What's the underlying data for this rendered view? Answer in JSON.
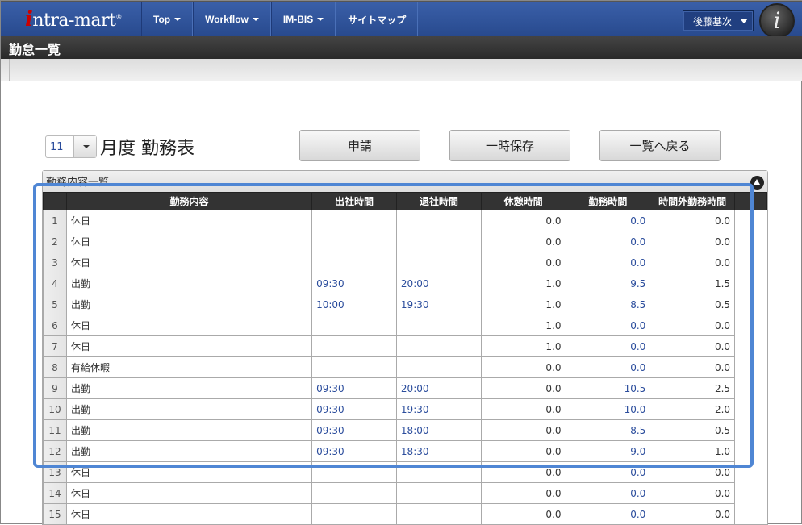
{
  "header": {
    "logo": "intra-mart",
    "nav": [
      {
        "label": "Top",
        "dropdown": true
      },
      {
        "label": "Workflow",
        "dropdown": true
      },
      {
        "label": "IM-BIS",
        "dropdown": true
      },
      {
        "label": "サイトマップ",
        "dropdown": false
      }
    ],
    "user": "後藤基次"
  },
  "page_title": "勤怠一覧",
  "month": {
    "value": "11",
    "label": "月度 勤務表"
  },
  "buttons": {
    "apply": "申請",
    "save": "一時保存",
    "back": "一覧へ戻る"
  },
  "panel": {
    "title": "勤務内容一覧"
  },
  "table": {
    "columns": [
      "",
      "勤務内容",
      "出社時間",
      "退社時間",
      "休憩時間",
      "勤務時間",
      "時間外勤務時間"
    ],
    "rows": [
      [
        "1",
        "休日",
        "",
        "",
        "0.0",
        "0.0",
        "0.0"
      ],
      [
        "2",
        "休日",
        "",
        "",
        "0.0",
        "0.0",
        "0.0"
      ],
      [
        "3",
        "休日",
        "",
        "",
        "0.0",
        "0.0",
        "0.0"
      ],
      [
        "4",
        "出勤",
        "09:30",
        "20:00",
        "1.0",
        "9.5",
        "1.5"
      ],
      [
        "5",
        "出勤",
        "10:00",
        "19:30",
        "1.0",
        "8.5",
        "0.5"
      ],
      [
        "6",
        "休日",
        "",
        "",
        "1.0",
        "0.0",
        "0.0"
      ],
      [
        "7",
        "休日",
        "",
        "",
        "1.0",
        "0.0",
        "0.0"
      ],
      [
        "8",
        "有給休暇",
        "",
        "",
        "0.0",
        "0.0",
        "0.0"
      ],
      [
        "9",
        "出勤",
        "09:30",
        "20:00",
        "0.0",
        "10.5",
        "2.5"
      ],
      [
        "10",
        "出勤",
        "09:30",
        "19:30",
        "0.0",
        "10.0",
        "2.0"
      ],
      [
        "11",
        "出勤",
        "09:30",
        "18:00",
        "0.0",
        "8.5",
        "0.5"
      ],
      [
        "12",
        "出勤",
        "09:30",
        "18:30",
        "0.0",
        "9.0",
        "1.0"
      ],
      [
        "13",
        "休日",
        "",
        "",
        "0.0",
        "0.0",
        "0.0"
      ],
      [
        "14",
        "休日",
        "",
        "",
        "0.0",
        "0.0",
        "0.0"
      ],
      [
        "15",
        "休日",
        "",
        "",
        "0.0",
        "0.0",
        "0.0"
      ]
    ]
  },
  "colors": {
    "highlight": "#4f86d4",
    "header_bg": "#2f5299"
  }
}
